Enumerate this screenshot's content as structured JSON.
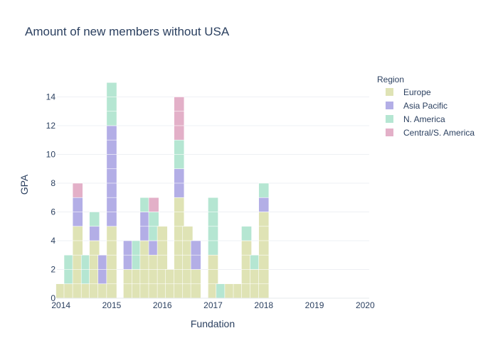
{
  "chart_data": {
    "type": "bar",
    "title": "Amount of new members without USA",
    "xlabel": "Fundation",
    "ylabel": "GPA",
    "ylim": [
      0,
      15.8
    ],
    "xlim": [
      2013.92,
      2020.08
    ],
    "x_ticks": [
      "2014",
      "2015",
      "2016",
      "2017",
      "2018",
      "2019",
      "2020"
    ],
    "y_ticks": [
      0,
      2,
      4,
      6,
      8,
      10,
      12,
      14
    ],
    "grid": true,
    "legend_title": "Region",
    "legend_position": "right",
    "stacked": true,
    "bar_width_years": 0.2,
    "x": [
      2014.0,
      2014.16,
      2014.33,
      2014.5,
      2014.66,
      2014.83,
      2015.0,
      2015.16,
      2015.33,
      2015.5,
      2015.66,
      2015.83,
      2016.0,
      2016.16,
      2016.33,
      2016.5,
      2016.66,
      2016.83,
      2017.0,
      2017.16,
      2017.33,
      2017.5,
      2017.66,
      2017.83,
      2018.0,
      2018.16,
      2018.33,
      2018.5,
      2018.66,
      2018.83,
      2019.0
    ],
    "series": [
      {
        "name": "Europe",
        "color": "#dfe3b5",
        "values": [
          1,
          1,
          5,
          1,
          4,
          1,
          5,
          0,
          2,
          2,
          4,
          3,
          5,
          2,
          7,
          5,
          2,
          0,
          3,
          0,
          1,
          1,
          4,
          2,
          6,
          0,
          0,
          0,
          0,
          0,
          0
        ]
      },
      {
        "name": "Asia Pacific",
        "color": "#b3aee6",
        "values": [
          0,
          0,
          2,
          0,
          1,
          2,
          7,
          0,
          2,
          0,
          2,
          1,
          0,
          0,
          2,
          0,
          2,
          0,
          0,
          0,
          0,
          0,
          0,
          0,
          1,
          0,
          0,
          0,
          0,
          0,
          0
        ]
      },
      {
        "name": "N. America",
        "color": "#b5e6d2",
        "values": [
          0,
          2,
          0,
          2,
          1,
          0,
          3,
          0,
          0,
          2,
          1,
          2,
          0,
          0,
          2,
          0,
          0,
          0,
          4,
          1,
          0,
          0,
          1,
          1,
          1,
          0,
          0,
          0,
          0,
          0,
          0
        ]
      },
      {
        "name": "Central/S. America",
        "color": "#e3b0c8",
        "values": [
          0,
          0,
          1,
          0,
          0,
          0,
          0,
          0,
          0,
          0,
          0,
          1,
          0,
          0,
          3,
          0,
          0,
          0,
          0,
          0,
          0,
          0,
          0,
          0,
          0,
          0,
          0,
          0,
          0,
          0,
          0
        ]
      }
    ]
  }
}
